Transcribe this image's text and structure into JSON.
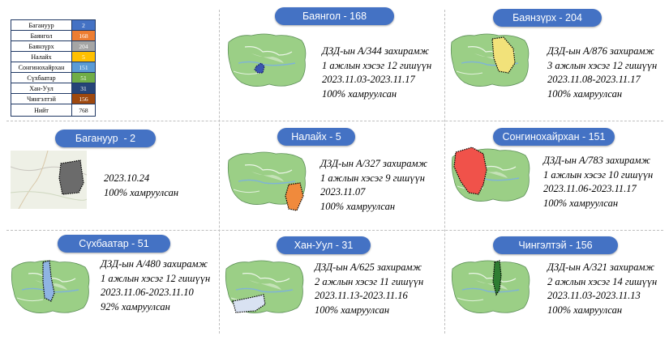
{
  "legend": {
    "rows": [
      {
        "name": "Багануур",
        "value": "2",
        "color": "#4472c4"
      },
      {
        "name": "Баянгол",
        "value": "168",
        "color": "#ed7d31"
      },
      {
        "name": "Баянзүрх",
        "value": "204",
        "color": "#a5a5a5"
      },
      {
        "name": "Налайх",
        "value": "5",
        "color": "#ffc000"
      },
      {
        "name": "Сонгинохайрхан",
        "value": "151",
        "color": "#5b9bd5"
      },
      {
        "name": "Сүхбаатар",
        "value": "51",
        "color": "#70ad47"
      },
      {
        "name": "Хан-Уул",
        "value": "31",
        "color": "#264478"
      },
      {
        "name": "Чингэлтэй",
        "value": "156",
        "color": "#9e480e"
      }
    ],
    "total_label": "Нийт",
    "total_value": "768"
  },
  "panels": [
    {
      "title": "Баянгол - 168",
      "lines": [
        "ДЗД-ын А/344 захирамж",
        "1 ажлын хэсэг 12 гишүүн",
        "2023.11.03-2023.11.17",
        "100% хамруулсан"
      ],
      "highlight_color": "#3a55b0"
    },
    {
      "title": "Баянзүрх - 204",
      "lines": [
        "ДЗД-ын А/876 захирамж",
        "3 ажлын хэсэг 12 гишүүн",
        "2023.11.08-2023.11.17",
        "100% хамруулсан"
      ],
      "highlight_color": "#f2e27a"
    },
    {
      "title": "Багануур  - 2",
      "lines": [
        "2023.10.24",
        "100% хамруулсан"
      ],
      "highlight_color": "#6b6b6b"
    },
    {
      "title": "Налайх - 5",
      "lines": [
        "ДЗД-ын А/327 захирамж",
        "1 ажлын хэсэг 9 гишүүн",
        "2023.11.07",
        "100% хамруулсан"
      ],
      "highlight_color": "#f08a3c"
    },
    {
      "title": "Сонгинохайрхан - 151",
      "lines": [
        "ДЗД-ын А/783 захирамж",
        "1 ажлын хэсэг 10 гишүүн",
        "2023.11.06-2023.11.17",
        "100% хамруулсан"
      ],
      "highlight_color": "#f0524a"
    },
    {
      "title": "Сүхбаатар - 51",
      "lines": [
        "ДЗД-ын А/480 захирамж",
        "1 ажлын хэсэг 12 гишүүн",
        "2023.11.06-2023.11.10",
        "92% хамруулсан"
      ],
      "highlight_color": "#8fb4e3"
    },
    {
      "title": "Хан-Уул - 31",
      "lines": [
        "ДЗД-ын А/625 захирамж",
        "2 ажлын хэсэг 11 гишүүн",
        "2023.11.13-2023.11.16",
        "100% хамруулсан"
      ],
      "highlight_color": "#d9e2f2"
    },
    {
      "title": "Чингэлтэй - 156",
      "lines": [
        "ДЗД-ын А/321 захирамж",
        "2 ажлын хэсэг 14 гишүүн",
        "2023.11.03-2023.11.13",
        "100% хамруулсан"
      ],
      "highlight_color": "#2e7d32"
    }
  ]
}
